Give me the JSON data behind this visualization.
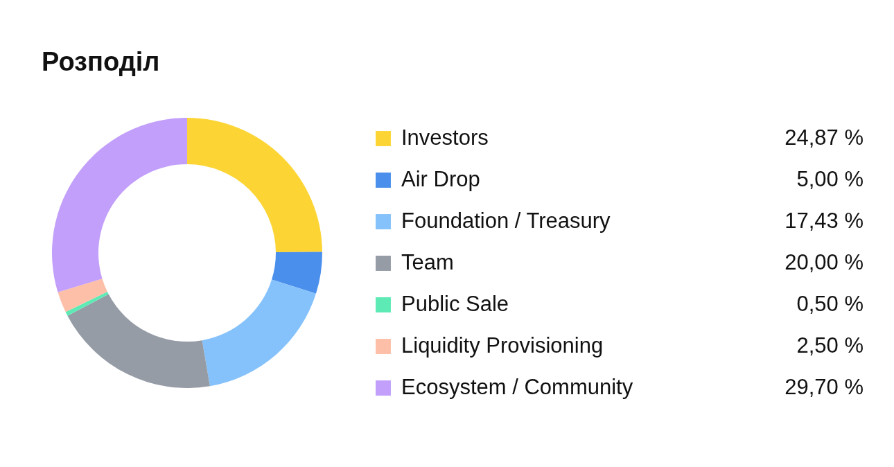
{
  "chart_data": {
    "type": "donut",
    "title": "Розподіл",
    "categories": [
      "Investors",
      "Air Drop",
      "Foundation / Treasury",
      "Team",
      "Public Sale",
      "Liquidity Provisioning",
      "Ecosystem / Community"
    ],
    "values": [
      24.87,
      5.0,
      17.43,
      20.0,
      0.5,
      2.5,
      29.7
    ],
    "value_labels": [
      "24,87 %",
      "5,00 %",
      "17,43 %",
      "20,00 %",
      "0,50 %",
      "2,50 %",
      "29,70 %"
    ],
    "colors": [
      "#fcd535",
      "#4a8fec",
      "#85c2fb",
      "#959ca6",
      "#5eeab5",
      "#fdbfa8",
      "#c29ffa"
    ],
    "legend": "right"
  }
}
